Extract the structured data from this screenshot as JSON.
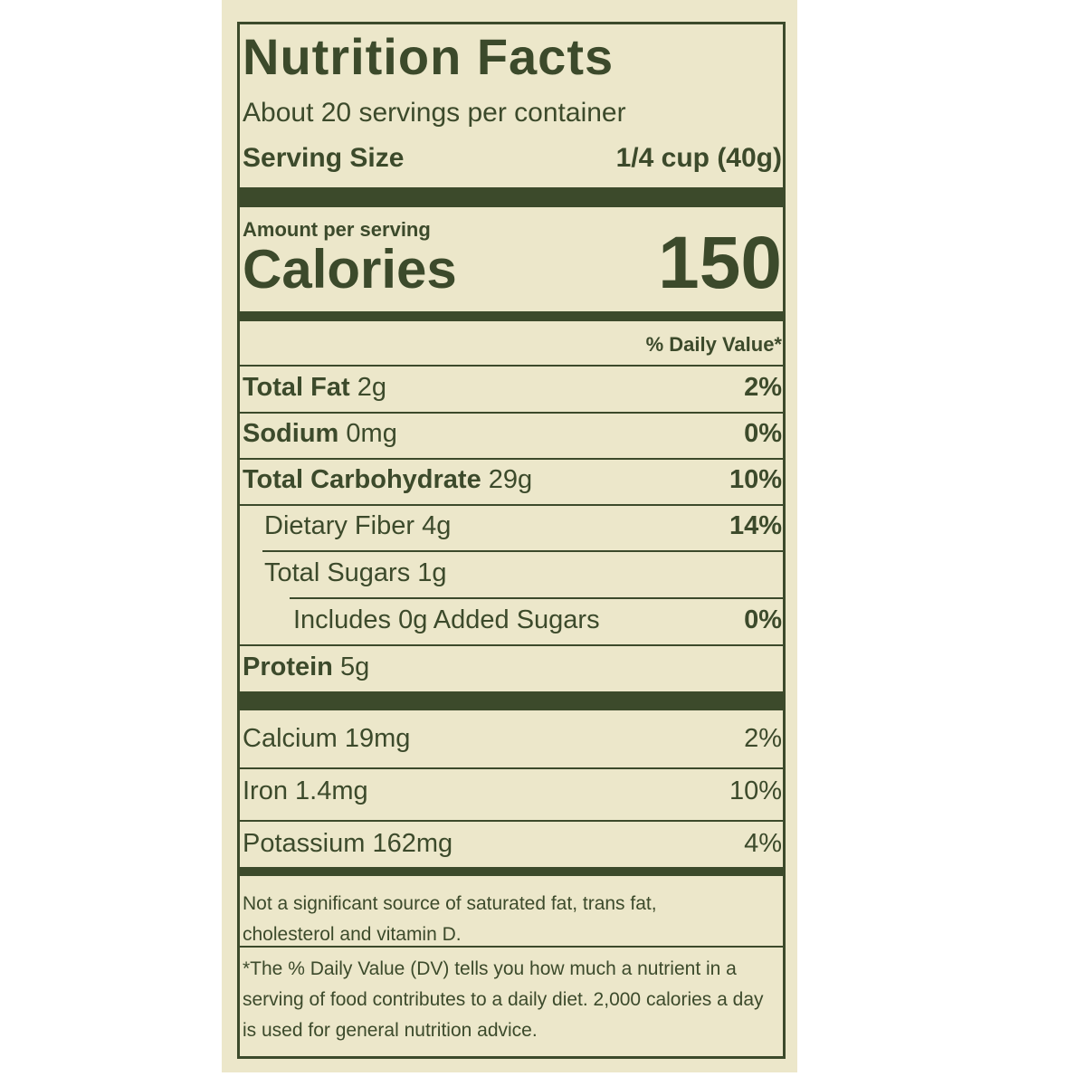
{
  "title": "Nutrition Facts",
  "servings": "About 20 servings per container",
  "serving_size": {
    "label": "Serving Size",
    "value": "1/4 cup (40g)"
  },
  "amount_per_serving": "Amount per serving",
  "calories": {
    "label": "Calories",
    "value": 150
  },
  "daily_value_header": "% Daily Value*",
  "nutrients": [
    {
      "name": "Total Fat",
      "amount": "2g",
      "dv": "2%"
    },
    {
      "name": "Sodium",
      "amount": "0mg",
      "dv": "0%"
    },
    {
      "name": "Total Carbohydrate",
      "amount": "29g",
      "dv": "10%"
    },
    {
      "name": "Dietary Fiber",
      "amount": "4g",
      "dv": "14%"
    },
    {
      "name": "Total Sugars",
      "amount": "1g"
    },
    {
      "name": "Includes",
      "amount": "0g Added Sugars",
      "dv": "0%"
    },
    {
      "name": "Protein",
      "amount": "5g"
    }
  ],
  "minerals": [
    {
      "name": "Calcium",
      "amount": "19mg",
      "dv": "2%"
    },
    {
      "name": "Iron",
      "amount": "1.4mg",
      "dv": "10%"
    },
    {
      "name": "Potassium",
      "amount": "162mg",
      "dv": "4%"
    }
  ],
  "note": "Not a significant source of saturated fat, trans fat, cholesterol and vitamin D.",
  "footnote": "*The % Daily Value (DV) tells you how much a nutrient in a serving of food contributes to a daily diet. 2,000 calories a day is used for general nutrition advice."
}
